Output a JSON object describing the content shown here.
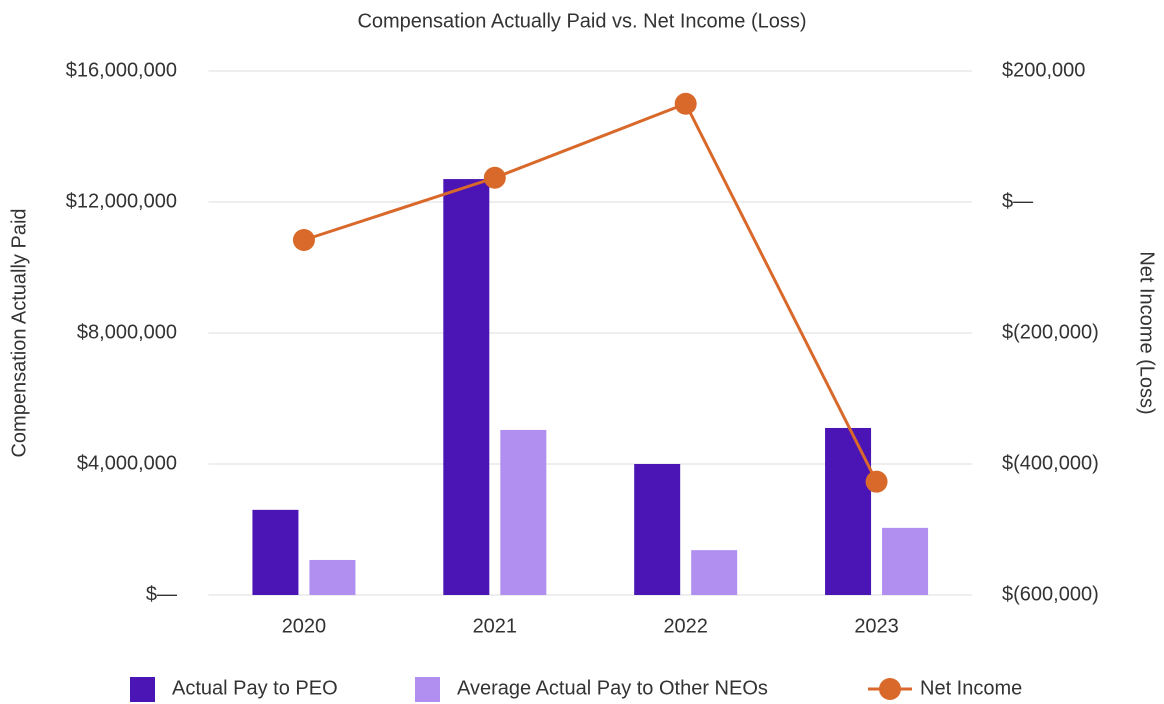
{
  "chart_data": {
    "type": "bar",
    "title": "Compensation Actually Paid vs. Net Income (Loss)",
    "ylabel": "Compensation Actually Paid",
    "y2label": "Net Income (Loss)",
    "categories": [
      "2020",
      "2021",
      "2022",
      "2023"
    ],
    "series": [
      {
        "name": "Actual Pay to PEO",
        "color": "#4b14b4",
        "type": "bar",
        "values": [
          2600000,
          12700000,
          4000000,
          5100000
        ]
      },
      {
        "name": "Average Actual Pay to Other NEOs",
        "color": "#b18ff0",
        "type": "bar",
        "values": [
          1070000,
          5040000,
          1370000,
          2050000
        ]
      },
      {
        "name": "Net Income",
        "color": "#d9692b",
        "type": "line",
        "axis": "y2",
        "values": [
          -58000,
          37000,
          150000,
          -427000
        ]
      }
    ],
    "ylim": [
      0,
      16000000
    ],
    "yticks": [
      {
        "value": 0,
        "label": "$—"
      },
      {
        "value": 4000000,
        "label": "$4,000,000"
      },
      {
        "value": 8000000,
        "label": "$8,000,000"
      },
      {
        "value": 12000000,
        "label": "$12,000,000"
      },
      {
        "value": 16000000,
        "label": "$16,000,000"
      }
    ],
    "y2lim": [
      -600000,
      200000
    ],
    "y2ticks": [
      {
        "value": -600000,
        "label": "$(600,000)"
      },
      {
        "value": -400000,
        "label": "$(400,000)"
      },
      {
        "value": -200000,
        "label": "$(200,000)"
      },
      {
        "value": 0,
        "label": "$—"
      },
      {
        "value": 200000,
        "label": "$200,000"
      }
    ],
    "grid": true,
    "legend": "bottom"
  }
}
